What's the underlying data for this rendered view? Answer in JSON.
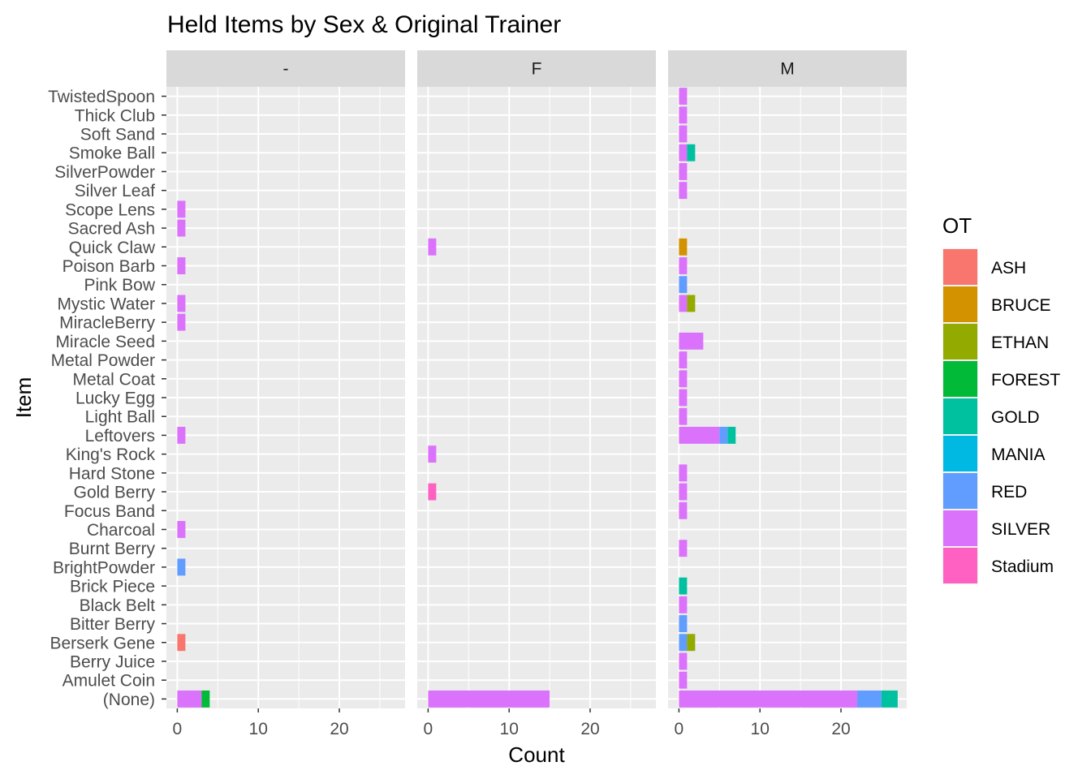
{
  "chart_data": {
    "type": "bar",
    "orientation": "horizontal",
    "stacked": true,
    "title": "Held Items by Sex & Original Trainer",
    "xlabel": "Count",
    "ylabel": "Item",
    "xlim": [
      0,
      27.3
    ],
    "xticks": [
      0,
      10,
      20
    ],
    "grid": true,
    "legend_position": "right",
    "legend_title": "OT",
    "facets": [
      "-",
      "F",
      "M"
    ],
    "categories": [
      "(None)",
      "Amulet Coin",
      "Berry Juice",
      "Berserk Gene",
      "Bitter Berry",
      "Black Belt",
      "Brick Piece",
      "BrightPowder",
      "Burnt Berry",
      "Charcoal",
      "Focus Band",
      "Gold Berry",
      "Hard Stone",
      "King's Rock",
      "Leftovers",
      "Light Ball",
      "Lucky Egg",
      "Metal Coat",
      "Metal Powder",
      "Miracle Seed",
      "MiracleBerry",
      "Mystic Water",
      "Pink Bow",
      "Poison Barb",
      "Quick Claw",
      "Sacred Ash",
      "Scope Lens",
      "Silver Leaf",
      "SilverPowder",
      "Smoke Ball",
      "Soft Sand",
      "Thick Club",
      "TwistedSpoon"
    ],
    "series": [
      {
        "name": "ASH",
        "color": "#F8766D"
      },
      {
        "name": "BRUCE",
        "color": "#D39200"
      },
      {
        "name": "ETHAN",
        "color": "#93AA00"
      },
      {
        "name": "FOREST",
        "color": "#00BA38"
      },
      {
        "name": "GOLD",
        "color": "#00C19F"
      },
      {
        "name": "MANIA",
        "color": "#00B9E3"
      },
      {
        "name": "RED",
        "color": "#619CFF"
      },
      {
        "name": "SILVER",
        "color": "#DB72FB"
      },
      {
        "name": "Stadium",
        "color": "#FF61C3"
      }
    ],
    "data": {
      "-": [
        {
          "item": "(None)",
          "segments": [
            {
              "ot": "SILVER",
              "value": 3
            },
            {
              "ot": "FOREST",
              "value": 1
            }
          ]
        },
        {
          "item": "Berserk Gene",
          "segments": [
            {
              "ot": "ASH",
              "value": 1
            }
          ]
        },
        {
          "item": "BrightPowder",
          "segments": [
            {
              "ot": "RED",
              "value": 1
            }
          ]
        },
        {
          "item": "Charcoal",
          "segments": [
            {
              "ot": "SILVER",
              "value": 1
            }
          ]
        },
        {
          "item": "Leftovers",
          "segments": [
            {
              "ot": "SILVER",
              "value": 1
            }
          ]
        },
        {
          "item": "MiracleBerry",
          "segments": [
            {
              "ot": "SILVER",
              "value": 1
            }
          ]
        },
        {
          "item": "Mystic Water",
          "segments": [
            {
              "ot": "SILVER",
              "value": 1
            }
          ]
        },
        {
          "item": "Poison Barb",
          "segments": [
            {
              "ot": "SILVER",
              "value": 1
            }
          ]
        },
        {
          "item": "Sacred Ash",
          "segments": [
            {
              "ot": "SILVER",
              "value": 1
            }
          ]
        },
        {
          "item": "Scope Lens",
          "segments": [
            {
              "ot": "SILVER",
              "value": 1
            }
          ]
        }
      ],
      "F": [
        {
          "item": "(None)",
          "segments": [
            {
              "ot": "SILVER",
              "value": 15
            }
          ]
        },
        {
          "item": "Gold Berry",
          "segments": [
            {
              "ot": "Stadium",
              "value": 1
            }
          ]
        },
        {
          "item": "King's Rock",
          "segments": [
            {
              "ot": "SILVER",
              "value": 1
            }
          ]
        },
        {
          "item": "Quick Claw",
          "segments": [
            {
              "ot": "SILVER",
              "value": 1
            }
          ]
        }
      ],
      "M": [
        {
          "item": "(None)",
          "segments": [
            {
              "ot": "SILVER",
              "value": 22
            },
            {
              "ot": "RED",
              "value": 3
            },
            {
              "ot": "GOLD",
              "value": 2
            }
          ]
        },
        {
          "item": "Amulet Coin",
          "segments": [
            {
              "ot": "SILVER",
              "value": 1
            }
          ]
        },
        {
          "item": "Berry Juice",
          "segments": [
            {
              "ot": "SILVER",
              "value": 1
            }
          ]
        },
        {
          "item": "Berserk Gene",
          "segments": [
            {
              "ot": "RED",
              "value": 1
            },
            {
              "ot": "ETHAN",
              "value": 1
            }
          ]
        },
        {
          "item": "Bitter Berry",
          "segments": [
            {
              "ot": "RED",
              "value": 1
            }
          ]
        },
        {
          "item": "Black Belt",
          "segments": [
            {
              "ot": "SILVER",
              "value": 1
            }
          ]
        },
        {
          "item": "Brick Piece",
          "segments": [
            {
              "ot": "GOLD",
              "value": 1
            }
          ]
        },
        {
          "item": "Burnt Berry",
          "segments": [
            {
              "ot": "SILVER",
              "value": 1
            }
          ]
        },
        {
          "item": "Focus Band",
          "segments": [
            {
              "ot": "SILVER",
              "value": 1
            }
          ]
        },
        {
          "item": "Gold Berry",
          "segments": [
            {
              "ot": "SILVER",
              "value": 1
            }
          ]
        },
        {
          "item": "Hard Stone",
          "segments": [
            {
              "ot": "SILVER",
              "value": 1
            }
          ]
        },
        {
          "item": "Leftovers",
          "segments": [
            {
              "ot": "SILVER",
              "value": 5
            },
            {
              "ot": "RED",
              "value": 1
            },
            {
              "ot": "GOLD",
              "value": 1
            }
          ]
        },
        {
          "item": "Light Ball",
          "segments": [
            {
              "ot": "SILVER",
              "value": 1
            }
          ]
        },
        {
          "item": "Lucky Egg",
          "segments": [
            {
              "ot": "SILVER",
              "value": 1
            }
          ]
        },
        {
          "item": "Metal Coat",
          "segments": [
            {
              "ot": "SILVER",
              "value": 1
            }
          ]
        },
        {
          "item": "Metal Powder",
          "segments": [
            {
              "ot": "SILVER",
              "value": 1
            }
          ]
        },
        {
          "item": "Miracle Seed",
          "segments": [
            {
              "ot": "SILVER",
              "value": 3
            }
          ]
        },
        {
          "item": "Mystic Water",
          "segments": [
            {
              "ot": "SILVER",
              "value": 1
            },
            {
              "ot": "ETHAN",
              "value": 1
            }
          ]
        },
        {
          "item": "Pink Bow",
          "segments": [
            {
              "ot": "RED",
              "value": 1
            }
          ]
        },
        {
          "item": "Poison Barb",
          "segments": [
            {
              "ot": "SILVER",
              "value": 1
            }
          ]
        },
        {
          "item": "Quick Claw",
          "segments": [
            {
              "ot": "BRUCE",
              "value": 1
            }
          ]
        },
        {
          "item": "Silver Leaf",
          "segments": [
            {
              "ot": "SILVER",
              "value": 1
            }
          ]
        },
        {
          "item": "SilverPowder",
          "segments": [
            {
              "ot": "SILVER",
              "value": 1
            }
          ]
        },
        {
          "item": "Smoke Ball",
          "segments": [
            {
              "ot": "SILVER",
              "value": 1
            },
            {
              "ot": "GOLD",
              "value": 1
            }
          ]
        },
        {
          "item": "Soft Sand",
          "segments": [
            {
              "ot": "SILVER",
              "value": 1
            }
          ]
        },
        {
          "item": "Thick Club",
          "segments": [
            {
              "ot": "SILVER",
              "value": 1
            }
          ]
        },
        {
          "item": "TwistedSpoon",
          "segments": [
            {
              "ot": "SILVER",
              "value": 1
            }
          ]
        }
      ]
    }
  }
}
